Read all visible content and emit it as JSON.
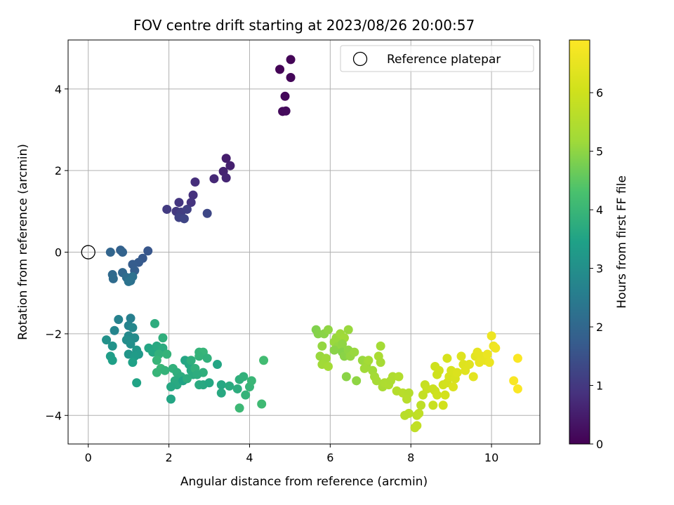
{
  "chart_data": {
    "type": "scatter",
    "title": "FOV centre drift starting at 2023/08/26 20:00:57",
    "xlabel": "Angular distance from reference (arcmin)",
    "ylabel": "Rotation from reference (arcmin)",
    "xlim": [
      -0.5,
      11.2
    ],
    "ylim": [
      -4.7,
      5.2
    ],
    "xticks": [
      0,
      2,
      4,
      6,
      8,
      10
    ],
    "yticks": [
      -4,
      -2,
      0,
      2,
      4
    ],
    "grid": true,
    "legend": {
      "position": "top-right",
      "entries": [
        "Reference platepar"
      ]
    },
    "reference_point": {
      "x": 0,
      "y": 0
    },
    "colorbar": {
      "label": "Hours from first FF file",
      "range": [
        0,
        6.9
      ],
      "ticks": [
        0,
        1,
        2,
        3,
        4,
        5,
        6
      ],
      "colormap": "viridis"
    },
    "points": [
      [
        4.75,
        4.48,
        0.05
      ],
      [
        5.02,
        4.72,
        0.07
      ],
      [
        5.02,
        4.28,
        0.1
      ],
      [
        4.88,
        3.82,
        0.12
      ],
      [
        4.82,
        3.45,
        0.15
      ],
      [
        4.9,
        3.46,
        0.17
      ],
      [
        3.42,
        2.3,
        0.5
      ],
      [
        3.52,
        2.12,
        0.55
      ],
      [
        3.35,
        1.98,
        0.6
      ],
      [
        3.42,
        1.82,
        0.65
      ],
      [
        3.12,
        1.8,
        0.7
      ],
      [
        2.65,
        1.72,
        0.8
      ],
      [
        2.6,
        1.4,
        0.85
      ],
      [
        2.55,
        1.22,
        0.9
      ],
      [
        2.25,
        1.22,
        0.95
      ],
      [
        2.18,
        1.0,
        1.0
      ],
      [
        1.95,
        1.05,
        1.05
      ],
      [
        2.3,
        0.98,
        1.1
      ],
      [
        2.45,
        1.05,
        1.15
      ],
      [
        2.25,
        0.85,
        1.2
      ],
      [
        2.38,
        0.82,
        1.25
      ],
      [
        2.95,
        0.95,
        1.3
      ],
      [
        1.48,
        0.03,
        1.6
      ],
      [
        1.35,
        -0.15,
        1.65
      ],
      [
        1.25,
        -0.25,
        1.7
      ],
      [
        1.1,
        -0.3,
        1.75
      ],
      [
        1.15,
        -0.45,
        1.8
      ],
      [
        0.8,
        0.05,
        1.85
      ],
      [
        0.85,
        0.0,
        1.9
      ],
      [
        0.55,
        0.0,
        1.95
      ],
      [
        0.85,
        -0.5,
        2.0
      ],
      [
        0.6,
        -0.55,
        2.05
      ],
      [
        0.62,
        -0.65,
        2.1
      ],
      [
        0.95,
        -0.62,
        2.15
      ],
      [
        1.05,
        -0.7,
        2.2
      ],
      [
        1.1,
        -0.6,
        2.25
      ],
      [
        1.0,
        -0.72,
        2.3
      ],
      [
        1.05,
        -1.62,
        2.6
      ],
      [
        0.75,
        -1.65,
        2.65
      ],
      [
        1.0,
        -1.8,
        2.7
      ],
      [
        0.65,
        -1.92,
        2.75
      ],
      [
        1.1,
        -1.85,
        2.8
      ],
      [
        1.0,
        -2.05,
        2.85
      ],
      [
        1.15,
        -2.1,
        2.9
      ],
      [
        0.95,
        -2.15,
        2.95
      ],
      [
        1.05,
        -2.25,
        3.0
      ],
      [
        0.45,
        -2.15,
        3.05
      ],
      [
        0.6,
        -2.3,
        3.1
      ],
      [
        1.0,
        -2.5,
        3.15
      ],
      [
        1.2,
        -2.4,
        3.2
      ],
      [
        1.25,
        -2.5,
        3.25
      ],
      [
        1.15,
        -2.55,
        3.3
      ],
      [
        0.55,
        -2.55,
        3.35
      ],
      [
        0.6,
        -2.65,
        3.4
      ],
      [
        1.1,
        -2.7,
        3.45
      ],
      [
        1.2,
        -3.2,
        3.5
      ],
      [
        1.5,
        -2.35,
        3.55
      ],
      [
        1.6,
        -2.45,
        3.6
      ],
      [
        1.7,
        -2.3,
        3.65
      ],
      [
        1.85,
        -2.35,
        3.7
      ],
      [
        1.65,
        -1.75,
        3.75
      ],
      [
        1.85,
        -2.1,
        3.8
      ],
      [
        1.75,
        -2.5,
        3.85
      ],
      [
        1.95,
        -2.5,
        3.9
      ],
      [
        1.7,
        -2.65,
        3.95
      ],
      [
        1.8,
        -2.85,
        4.0
      ],
      [
        1.7,
        -2.95,
        3.95
      ],
      [
        1.9,
        -2.9,
        3.9
      ],
      [
        2.1,
        -2.85,
        3.85
      ],
      [
        2.2,
        -2.95,
        3.8
      ],
      [
        2.3,
        -3.05,
        3.75
      ],
      [
        2.15,
        -3.15,
        3.7
      ],
      [
        2.2,
        -3.25,
        3.65
      ],
      [
        2.05,
        -3.3,
        3.6
      ],
      [
        2.05,
        -3.6,
        3.55
      ],
      [
        2.35,
        -3.15,
        3.5
      ],
      [
        2.4,
        -2.65,
        3.55
      ],
      [
        2.5,
        -2.75,
        3.6
      ],
      [
        2.55,
        -2.9,
        3.65
      ],
      [
        2.6,
        -3.0,
        3.7
      ],
      [
        2.45,
        -3.1,
        3.75
      ],
      [
        2.55,
        -2.65,
        3.8
      ],
      [
        2.65,
        -2.85,
        3.85
      ],
      [
        2.75,
        -2.45,
        3.9
      ],
      [
        2.85,
        -2.45,
        3.95
      ],
      [
        2.75,
        -2.55,
        3.9
      ],
      [
        2.95,
        -2.6,
        3.85
      ],
      [
        2.85,
        -2.95,
        3.8
      ],
      [
        2.7,
        -3.0,
        3.75
      ],
      [
        2.75,
        -3.25,
        3.7
      ],
      [
        2.85,
        -3.25,
        3.65
      ],
      [
        3.0,
        -3.2,
        3.6
      ],
      [
        3.2,
        -2.75,
        3.55
      ],
      [
        3.3,
        -3.25,
        3.6
      ],
      [
        3.3,
        -3.45,
        3.65
      ],
      [
        3.5,
        -3.28,
        3.7
      ],
      [
        3.7,
        -3.35,
        3.75
      ],
      [
        3.75,
        -3.12,
        3.8
      ],
      [
        3.85,
        -3.05,
        3.85
      ],
      [
        3.9,
        -3.5,
        3.9
      ],
      [
        4.0,
        -3.3,
        3.95
      ],
      [
        4.05,
        -3.15,
        4.0
      ],
      [
        3.75,
        -3.82,
        4.05
      ],
      [
        4.3,
        -3.72,
        4.1
      ],
      [
        4.35,
        -2.65,
        4.15
      ],
      [
        5.65,
        -1.9,
        4.85
      ],
      [
        5.7,
        -2.0,
        4.9
      ],
      [
        5.85,
        -2.0,
        4.95
      ],
      [
        5.95,
        -1.9,
        5.0
      ],
      [
        5.8,
        -2.3,
        5.05
      ],
      [
        5.75,
        -2.55,
        5.1
      ],
      [
        5.9,
        -2.6,
        5.15
      ],
      [
        5.8,
        -2.75,
        5.2
      ],
      [
        5.95,
        -2.8,
        5.25
      ],
      [
        6.1,
        -2.2,
        5.1
      ],
      [
        6.2,
        -2.3,
        5.05
      ],
      [
        6.15,
        -2.1,
        5.1
      ],
      [
        6.25,
        -2.0,
        5.15
      ],
      [
        6.35,
        -2.1,
        5.2
      ],
      [
        6.45,
        -1.9,
        5.1
      ],
      [
        6.3,
        -2.25,
        5.0
      ],
      [
        6.1,
        -2.4,
        4.95
      ],
      [
        6.3,
        -2.45,
        4.9
      ],
      [
        6.35,
        -2.55,
        4.95
      ],
      [
        6.45,
        -2.4,
        5.0
      ],
      [
        6.5,
        -2.55,
        5.05
      ],
      [
        6.6,
        -2.45,
        5.1
      ],
      [
        6.4,
        -3.05,
        4.95
      ],
      [
        6.65,
        -3.15,
        5.0
      ],
      [
        6.8,
        -2.65,
        5.1
      ],
      [
        6.9,
        -2.75,
        5.15
      ],
      [
        6.85,
        -2.85,
        5.2
      ],
      [
        6.95,
        -2.65,
        5.25
      ],
      [
        7.05,
        -2.9,
        5.2
      ],
      [
        7.1,
        -3.05,
        5.25
      ],
      [
        7.15,
        -3.15,
        5.3
      ],
      [
        7.2,
        -2.55,
        5.35
      ],
      [
        7.25,
        -2.7,
        5.3
      ],
      [
        7.25,
        -2.3,
        5.25
      ],
      [
        7.3,
        -3.3,
        5.35
      ],
      [
        7.35,
        -3.2,
        5.4
      ],
      [
        7.45,
        -3.25,
        5.45
      ],
      [
        7.5,
        -3.15,
        5.4
      ],
      [
        7.55,
        -3.05,
        5.45
      ],
      [
        7.7,
        -3.05,
        5.5
      ],
      [
        7.65,
        -3.4,
        5.55
      ],
      [
        7.8,
        -3.45,
        5.6
      ],
      [
        7.95,
        -3.45,
        5.55
      ],
      [
        7.9,
        -3.6,
        5.6
      ],
      [
        7.95,
        -3.95,
        5.65
      ],
      [
        7.85,
        -4.0,
        5.6
      ],
      [
        8.15,
        -4.0,
        5.7
      ],
      [
        8.2,
        -3.95,
        5.75
      ],
      [
        8.15,
        -4.25,
        5.8
      ],
      [
        8.1,
        -4.3,
        5.75
      ],
      [
        8.25,
        -3.75,
        5.7
      ],
      [
        8.3,
        -3.5,
        5.8
      ],
      [
        8.35,
        -3.25,
        5.85
      ],
      [
        8.4,
        -3.35,
        5.9
      ],
      [
        8.55,
        -3.35,
        5.95
      ],
      [
        8.55,
        -3.75,
        5.9
      ],
      [
        8.6,
        -3.4,
        5.95
      ],
      [
        8.65,
        -3.5,
        6.0
      ],
      [
        8.6,
        -2.8,
        6.0
      ],
      [
        8.7,
        -2.9,
        6.05
      ],
      [
        8.65,
        -3.0,
        6.0
      ],
      [
        8.8,
        -3.25,
        6.05
      ],
      [
        8.85,
        -3.5,
        6.1
      ],
      [
        8.8,
        -3.75,
        6.05
      ],
      [
        8.9,
        -3.2,
        6.1
      ],
      [
        8.95,
        -3.05,
        6.15
      ],
      [
        8.9,
        -2.6,
        6.15
      ],
      [
        9.0,
        -2.9,
        6.2
      ],
      [
        9.1,
        -3.1,
        6.2
      ],
      [
        9.05,
        -3.3,
        6.25
      ],
      [
        9.15,
        -2.95,
        6.25
      ],
      [
        9.25,
        -2.55,
        6.3
      ],
      [
        9.3,
        -2.75,
        6.3
      ],
      [
        9.35,
        -2.9,
        6.35
      ],
      [
        9.45,
        -2.75,
        6.35
      ],
      [
        9.55,
        -3.05,
        6.4
      ],
      [
        9.6,
        -2.55,
        6.4
      ],
      [
        9.65,
        -2.45,
        6.45
      ],
      [
        9.75,
        -2.55,
        6.45
      ],
      [
        9.7,
        -2.7,
        6.5
      ],
      [
        9.85,
        -2.65,
        6.5
      ],
      [
        9.9,
        -2.5,
        6.55
      ],
      [
        9.95,
        -2.7,
        6.55
      ],
      [
        10.0,
        -2.05,
        6.6
      ],
      [
        10.05,
        -2.3,
        6.6
      ],
      [
        10.1,
        -2.35,
        6.65
      ],
      [
        10.65,
        -2.6,
        6.85
      ],
      [
        10.55,
        -3.15,
        6.8
      ],
      [
        10.65,
        -3.35,
        6.85
      ]
    ]
  }
}
